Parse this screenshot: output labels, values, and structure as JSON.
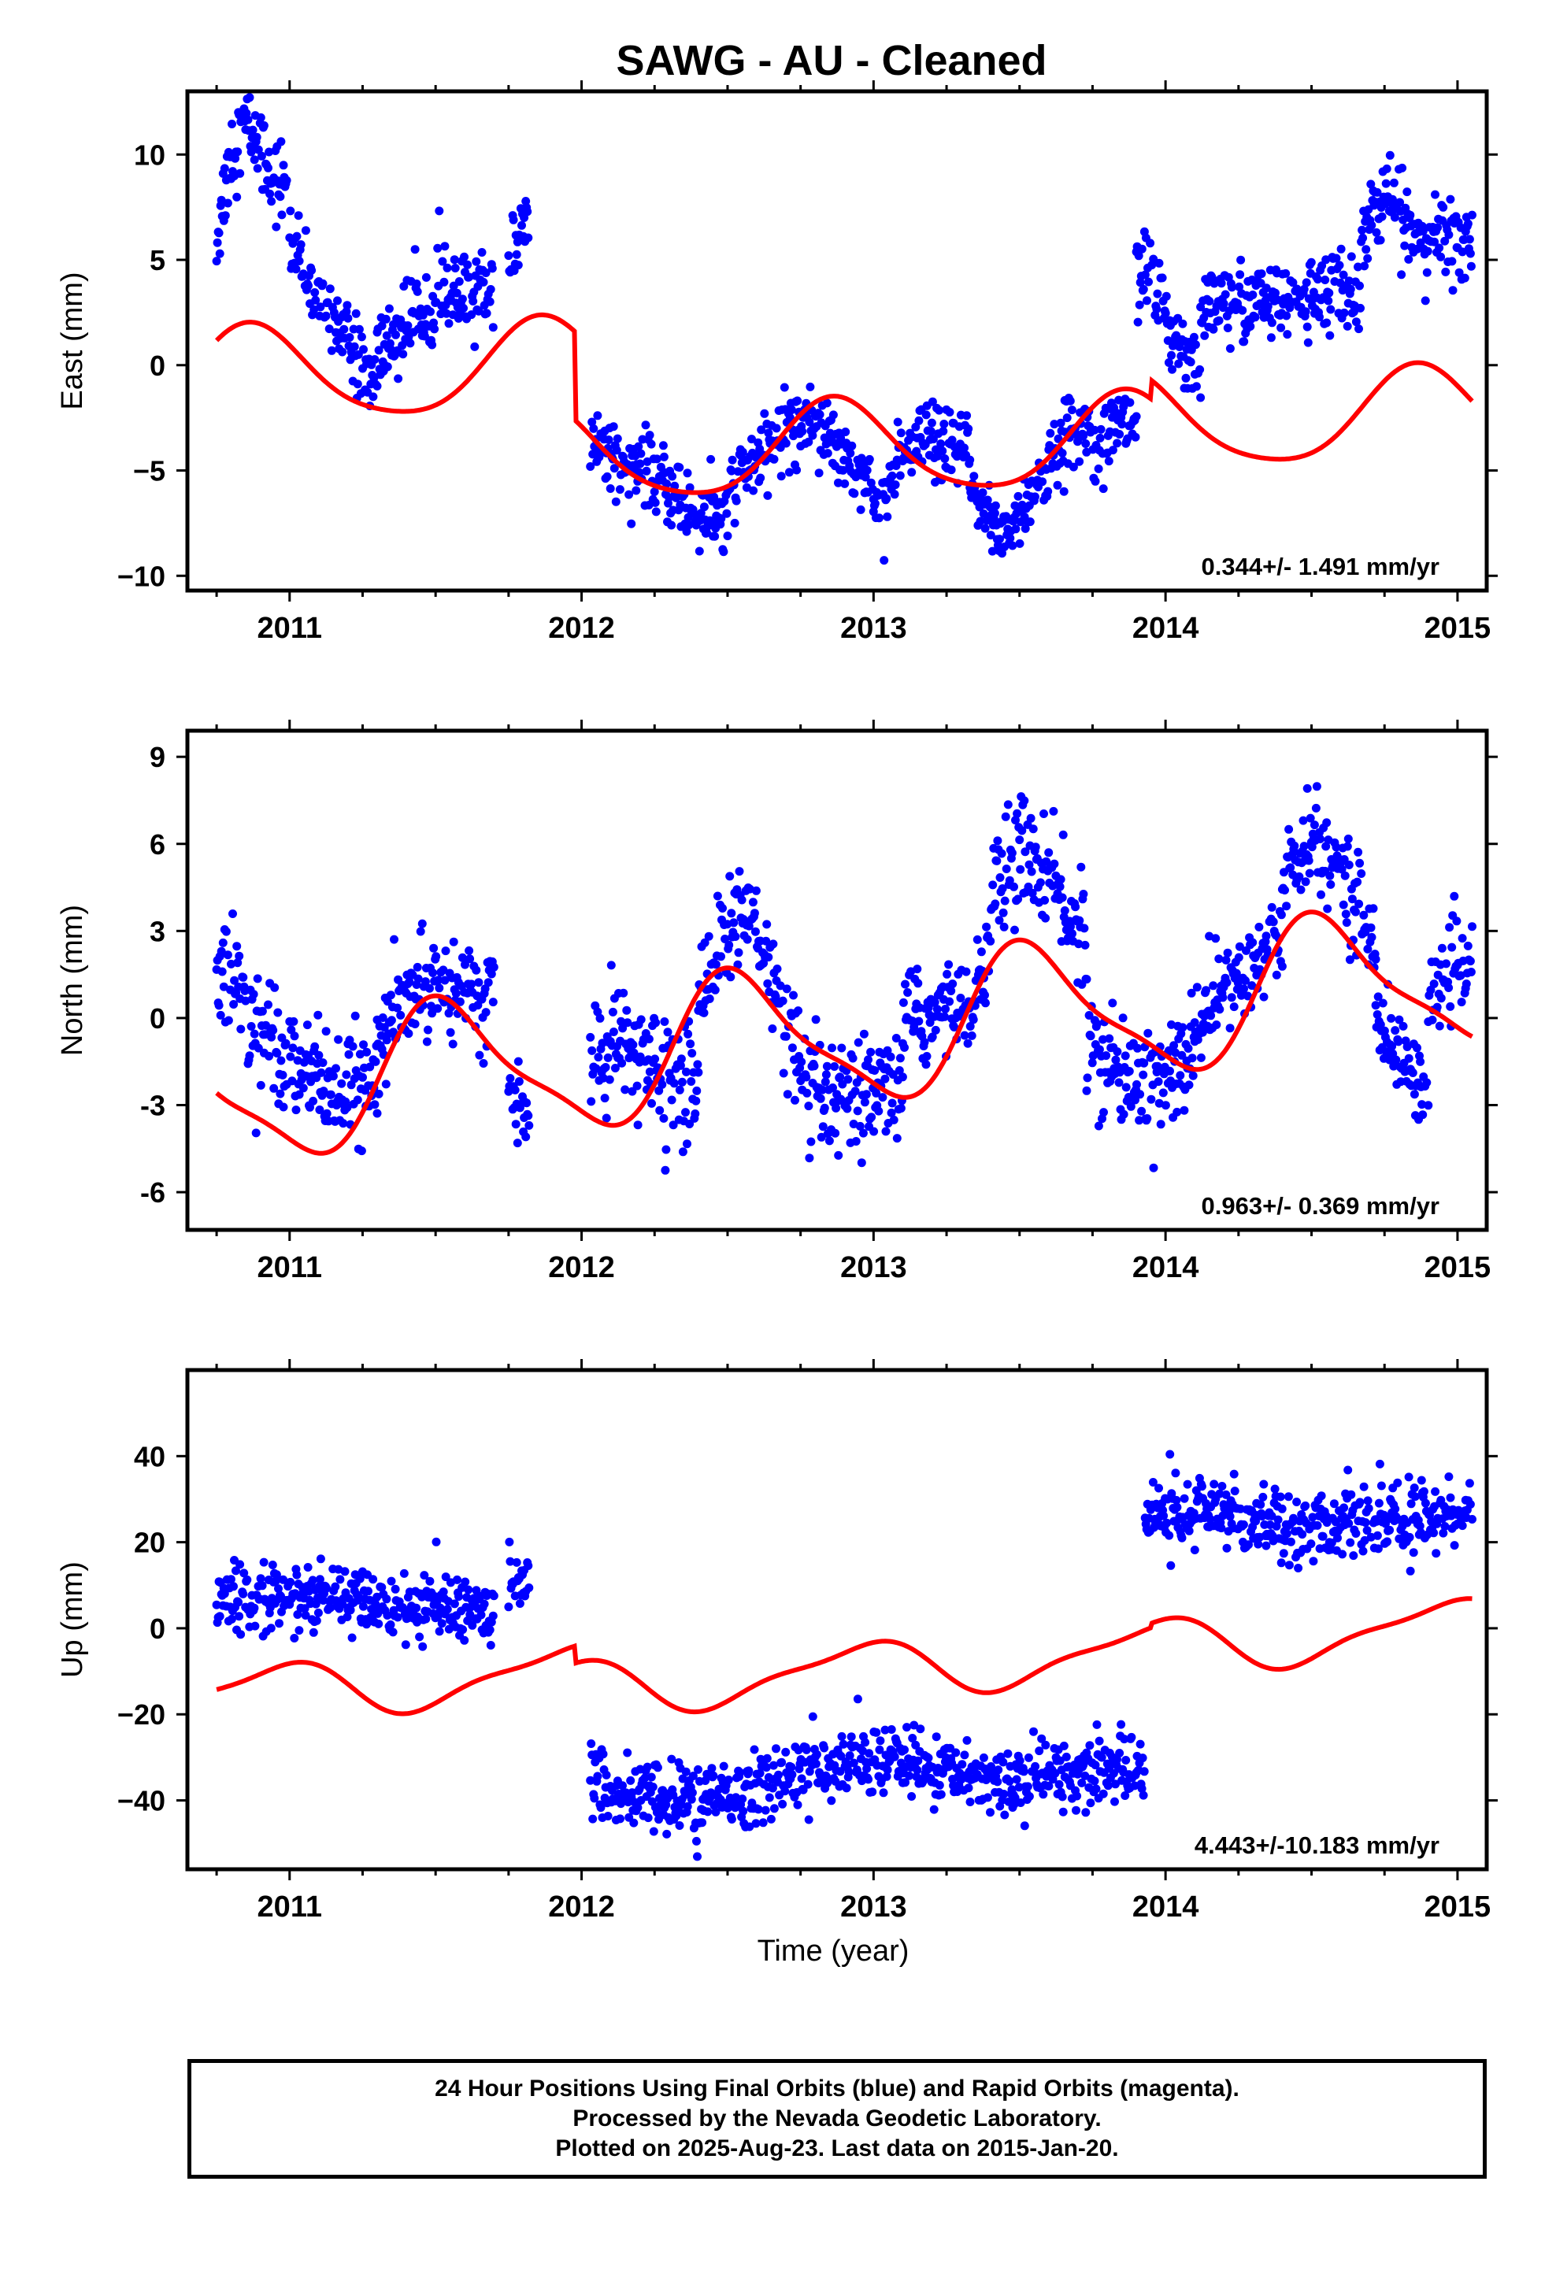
{
  "title": "SAWG  - AU - Cleaned",
  "x_axis_label": "Time (year)",
  "footer": {
    "lines": [
      "24 Hour Positions Using Final Orbits (blue) and Rapid Orbits (magenta).",
      "Processed by the Nevada Geodetic Laboratory.",
      "Plotted on 2025-Aug-23. Last data on 2015-Jan-20."
    ]
  },
  "colors": {
    "points": "#0000ff",
    "model": "#ff0000",
    "axes": "#000000"
  },
  "chart_data": [
    {
      "type": "scatter",
      "ylabel": "East (mm)",
      "rate_text": "0.344+/- 1.491 mm/yr",
      "xlim": [
        2010.65,
        2015.1
      ],
      "ylim": [
        -10.7,
        13.0
      ],
      "xticks": [
        2011,
        2012,
        2013,
        2014,
        2015
      ],
      "yticks": [
        -10,
        -5,
        0,
        5,
        10
      ],
      "ytick_labels": [
        "−10",
        "−5",
        "0",
        "5",
        "10"
      ],
      "data_segments": [
        {
          "x_range": [
            2010.75,
            2010.99
          ],
          "y": [
            6,
            10,
            11.5,
            10.5,
            9,
            8.5
          ],
          "noise": 1.2
        },
        {
          "x_range": [
            2011.0,
            2011.3
          ],
          "y": [
            6,
            3.5,
            2.5,
            0.5,
            -1
          ],
          "noise": 1.0
        },
        {
          "x_range": [
            2011.3,
            2011.7
          ],
          "y": [
            0.5,
            2,
            3.5,
            3,
            4
          ],
          "noise": 1.2
        },
        {
          "x_range": [
            2011.75,
            2011.82
          ],
          "y": [
            5,
            7
          ],
          "noise": 1.0
        },
        {
          "x_range": [
            2012.03,
            2012.5
          ],
          "y": [
            -3.5,
            -4.5,
            -5.5,
            -7,
            -7.5
          ],
          "noise": 1.0
        },
        {
          "x_range": [
            2012.5,
            2013.0
          ],
          "y": [
            -6,
            -4.5,
            -3,
            -2.5,
            -4,
            -6
          ],
          "noise": 1.0
        },
        {
          "x_range": [
            2013.0,
            2013.33
          ],
          "y": [
            -6.5,
            -5,
            -3.5,
            -4,
            -4
          ],
          "noise": 1.0
        },
        {
          "x_range": [
            2013.33,
            2013.9
          ],
          "y": [
            -6,
            -8,
            -6,
            -3,
            -3,
            -2.5
          ],
          "noise": 1.0
        },
        {
          "x_range": [
            2013.9,
            2014.12
          ],
          "y": [
            5,
            3,
            1,
            0
          ],
          "noise": 1.2
        },
        {
          "x_range": [
            2014.12,
            2014.67
          ],
          "y": [
            2.5,
            3,
            3,
            3.5,
            3.5
          ],
          "noise": 1.1
        },
        {
          "x_range": [
            2014.67,
            2015.05
          ],
          "y": [
            6.5,
            8,
            6,
            6,
            6
          ],
          "noise": 1.1
        }
      ],
      "model": {
        "offset": 0.2,
        "trend": 0.344,
        "annual_amp": 2.2,
        "annual_peak": 2010.87,
        "semi_amp": 0.35,
        "semi_peak": 2010.85,
        "steps": [
          {
            "t": 2011.98,
            "dy": -4.2
          },
          {
            "t": 2013.95,
            "dy": 0.9
          }
        ]
      }
    },
    {
      "type": "scatter",
      "ylabel": "North (mm)",
      "rate_text": "0.963+/- 0.369 mm/yr",
      "xlim": [
        2010.65,
        2015.1
      ],
      "ylim": [
        -7.3,
        9.9
      ],
      "xticks": [
        2011,
        2012,
        2013,
        2014,
        2015
      ],
      "yticks": [
        -6,
        -3,
        0,
        3,
        6,
        9
      ],
      "ytick_labels": [
        "-6",
        "-3",
        "0",
        "3",
        "6",
        "9"
      ],
      "data_segments": [
        {
          "x_range": [
            2010.75,
            2010.99
          ],
          "y": [
            2,
            1,
            0,
            -0.5,
            -1
          ],
          "noise": 1.2
        },
        {
          "x_range": [
            2011.0,
            2011.3
          ],
          "y": [
            -1,
            -2,
            -2.5,
            -2.5,
            -2
          ],
          "noise": 1.1
        },
        {
          "x_range": [
            2011.3,
            2011.7
          ],
          "y": [
            -1,
            0.5,
            1.5,
            1,
            0.5
          ],
          "noise": 1.0
        },
        {
          "x_range": [
            2011.75,
            2011.82
          ],
          "y": [
            -2.5,
            -3.5
          ],
          "noise": 0.6
        },
        {
          "x_range": [
            2012.03,
            2012.4
          ],
          "y": [
            -1.5,
            -1,
            -2,
            -2.5
          ],
          "noise": 1.2
        },
        {
          "x_range": [
            2012.4,
            2012.75
          ],
          "y": [
            1,
            3,
            3.5,
            1,
            -1.5
          ],
          "noise": 1.1
        },
        {
          "x_range": [
            2012.75,
            2013.1
          ],
          "y": [
            -2.5,
            -3,
            -3,
            -2
          ],
          "noise": 1.1
        },
        {
          "x_range": [
            2013.1,
            2013.4
          ],
          "y": [
            0,
            0,
            0.5,
            2
          ],
          "noise": 1.0
        },
        {
          "x_range": [
            2013.4,
            2013.73
          ],
          "y": [
            4,
            6,
            4.5,
            2.5
          ],
          "noise": 1.1
        },
        {
          "x_range": [
            2013.73,
            2014.1
          ],
          "y": [
            -1,
            -2,
            -2,
            -1.5
          ],
          "noise": 1.1
        },
        {
          "x_range": [
            2014.1,
            2014.4
          ],
          "y": [
            0,
            1,
            1.5,
            3
          ],
          "noise": 1.0
        },
        {
          "x_range": [
            2014.4,
            2014.72
          ],
          "y": [
            5,
            6,
            5,
            2.5
          ],
          "noise": 1.0
        },
        {
          "x_range": [
            2014.72,
            2014.9
          ],
          "y": [
            0,
            -1.5,
            -2.5
          ],
          "noise": 0.8
        },
        {
          "x_range": [
            2014.9,
            2015.05
          ],
          "y": [
            0.5,
            1.5,
            2
          ],
          "noise": 0.8
        }
      ],
      "model": {
        "offset": -0.6,
        "trend": 0.963,
        "annual_amp": 2.3,
        "annual_peak": 2011.54,
        "semi_amp": 0.6,
        "semi_peak": 2011.45,
        "steps": []
      }
    },
    {
      "type": "scatter",
      "ylabel": "Up (mm)",
      "rate_text": "4.443+/-10.183 mm/yr",
      "xlim": [
        2010.65,
        2015.1
      ],
      "ylim": [
        -56,
        60
      ],
      "xticks": [
        2011,
        2012,
        2013,
        2014,
        2015
      ],
      "yticks": [
        -40,
        -20,
        0,
        20,
        40
      ],
      "ytick_labels": [
        "−40",
        "−20",
        "0",
        "20",
        "40"
      ],
      "data_segments": [
        {
          "x_range": [
            2010.75,
            2011.7
          ],
          "y": [
            7,
            7,
            6,
            5,
            4
          ],
          "noise": 5.0
        },
        {
          "x_range": [
            2011.75,
            2011.82
          ],
          "y": [
            12,
            10
          ],
          "noise": 4.0
        },
        {
          "x_range": [
            2012.03,
            2012.6
          ],
          "y": [
            -37,
            -39,
            -40,
            -40,
            -38
          ],
          "noise": 5.0
        },
        {
          "x_range": [
            2012.6,
            2013.1
          ],
          "y": [
            -36,
            -33,
            -31,
            -30
          ],
          "noise": 4.5
        },
        {
          "x_range": [
            2013.1,
            2013.93
          ],
          "y": [
            -32,
            -34,
            -35,
            -33,
            -32
          ],
          "noise": 4.5
        },
        {
          "x_range": [
            2013.93,
            2015.05
          ],
          "y": [
            26,
            27,
            25,
            24,
            25,
            28
          ],
          "noise": 5.0
        }
      ],
      "model": {
        "offset": -6.0,
        "trend": 4.443,
        "annual_amp": 6.0,
        "annual_peak": 2010.95,
        "semi_amp": 1.8,
        "semi_peak": 2011.1,
        "steps": [
          {
            "t": 2011.98,
            "dy": -4.0
          },
          {
            "t": 2013.95,
            "dy": 1.0
          }
        ]
      }
    }
  ]
}
